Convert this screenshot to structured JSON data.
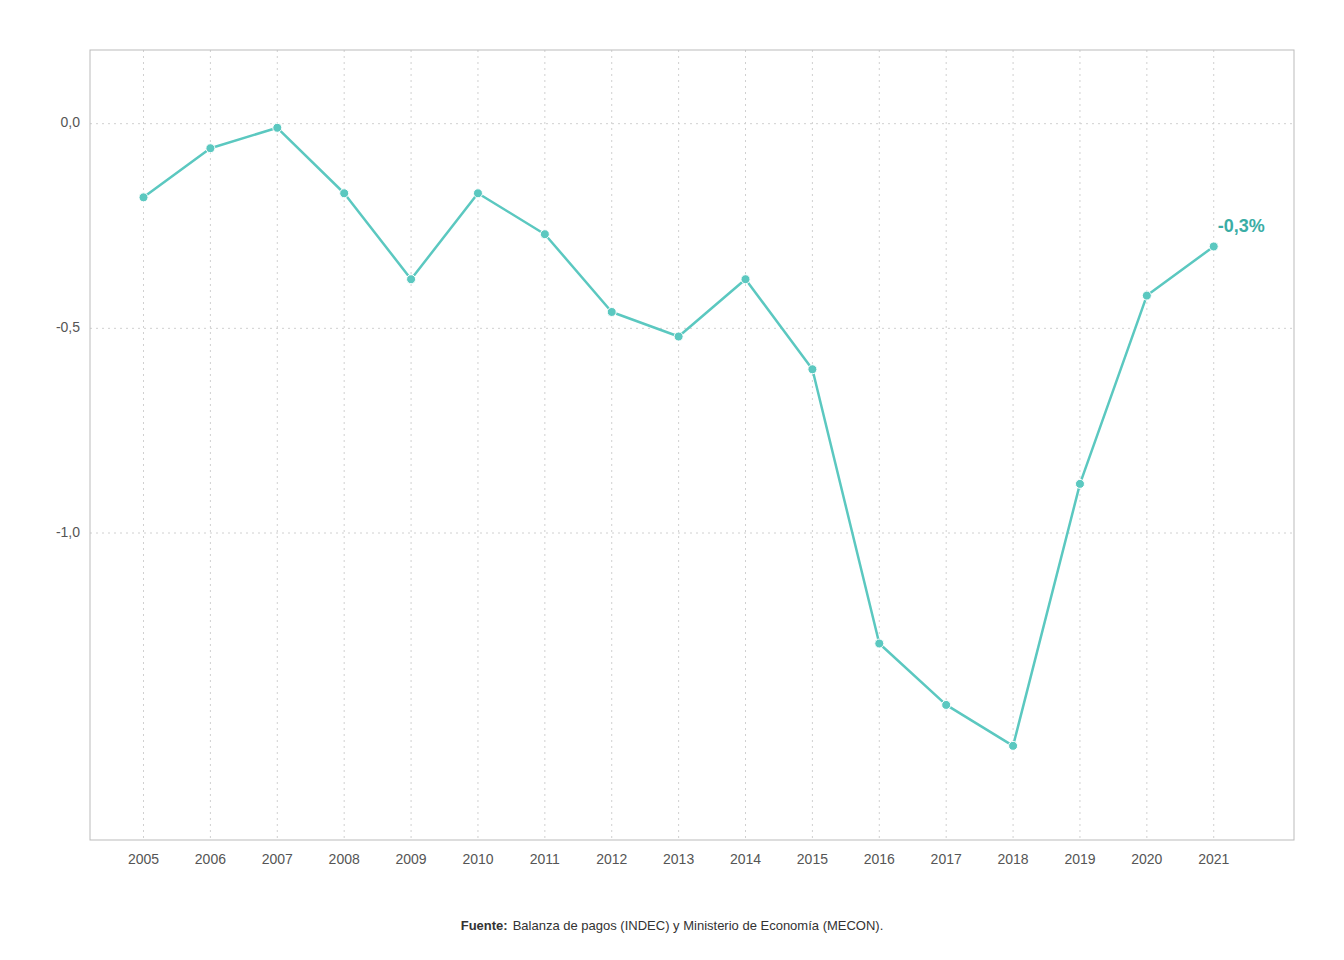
{
  "chart_data": {
    "type": "line",
    "x": [
      2005,
      2006,
      2007,
      2008,
      2009,
      2010,
      2011,
      2012,
      2013,
      2014,
      2015,
      2016,
      2017,
      2018,
      2019,
      2020,
      2021
    ],
    "values": [
      -0.18,
      -0.06,
      -0.01,
      -0.17,
      -0.38,
      -0.17,
      -0.27,
      -0.46,
      -0.52,
      -0.38,
      -0.6,
      -1.27,
      -1.42,
      -1.52,
      -0.88,
      -0.42,
      -0.3
    ],
    "color": "#5bc8c0",
    "marker": "circle",
    "xlim": [
      2004.2,
      2022.2
    ],
    "xticks": [
      2005,
      2006,
      2007,
      2008,
      2009,
      2010,
      2011,
      2012,
      2013,
      2014,
      2015,
      2016,
      2017,
      2018,
      2019,
      2020,
      2021
    ],
    "ylim": [
      -1.75,
      0.18
    ],
    "yticks": [
      {
        "value": 0.0,
        "label": "0,0"
      },
      {
        "value": -0.5,
        "label": "-0,5"
      },
      {
        "value": -1.0,
        "label": "-1,0"
      }
    ],
    "grid": true,
    "annotations": [
      {
        "text": "-0,3%",
        "x": 2021,
        "y": -0.3,
        "color": "#3aada5"
      }
    ],
    "source_label": "Fuente:",
    "source": "Balanza de pagos (INDEC) y Ministerio de Economía (MECON)."
  }
}
